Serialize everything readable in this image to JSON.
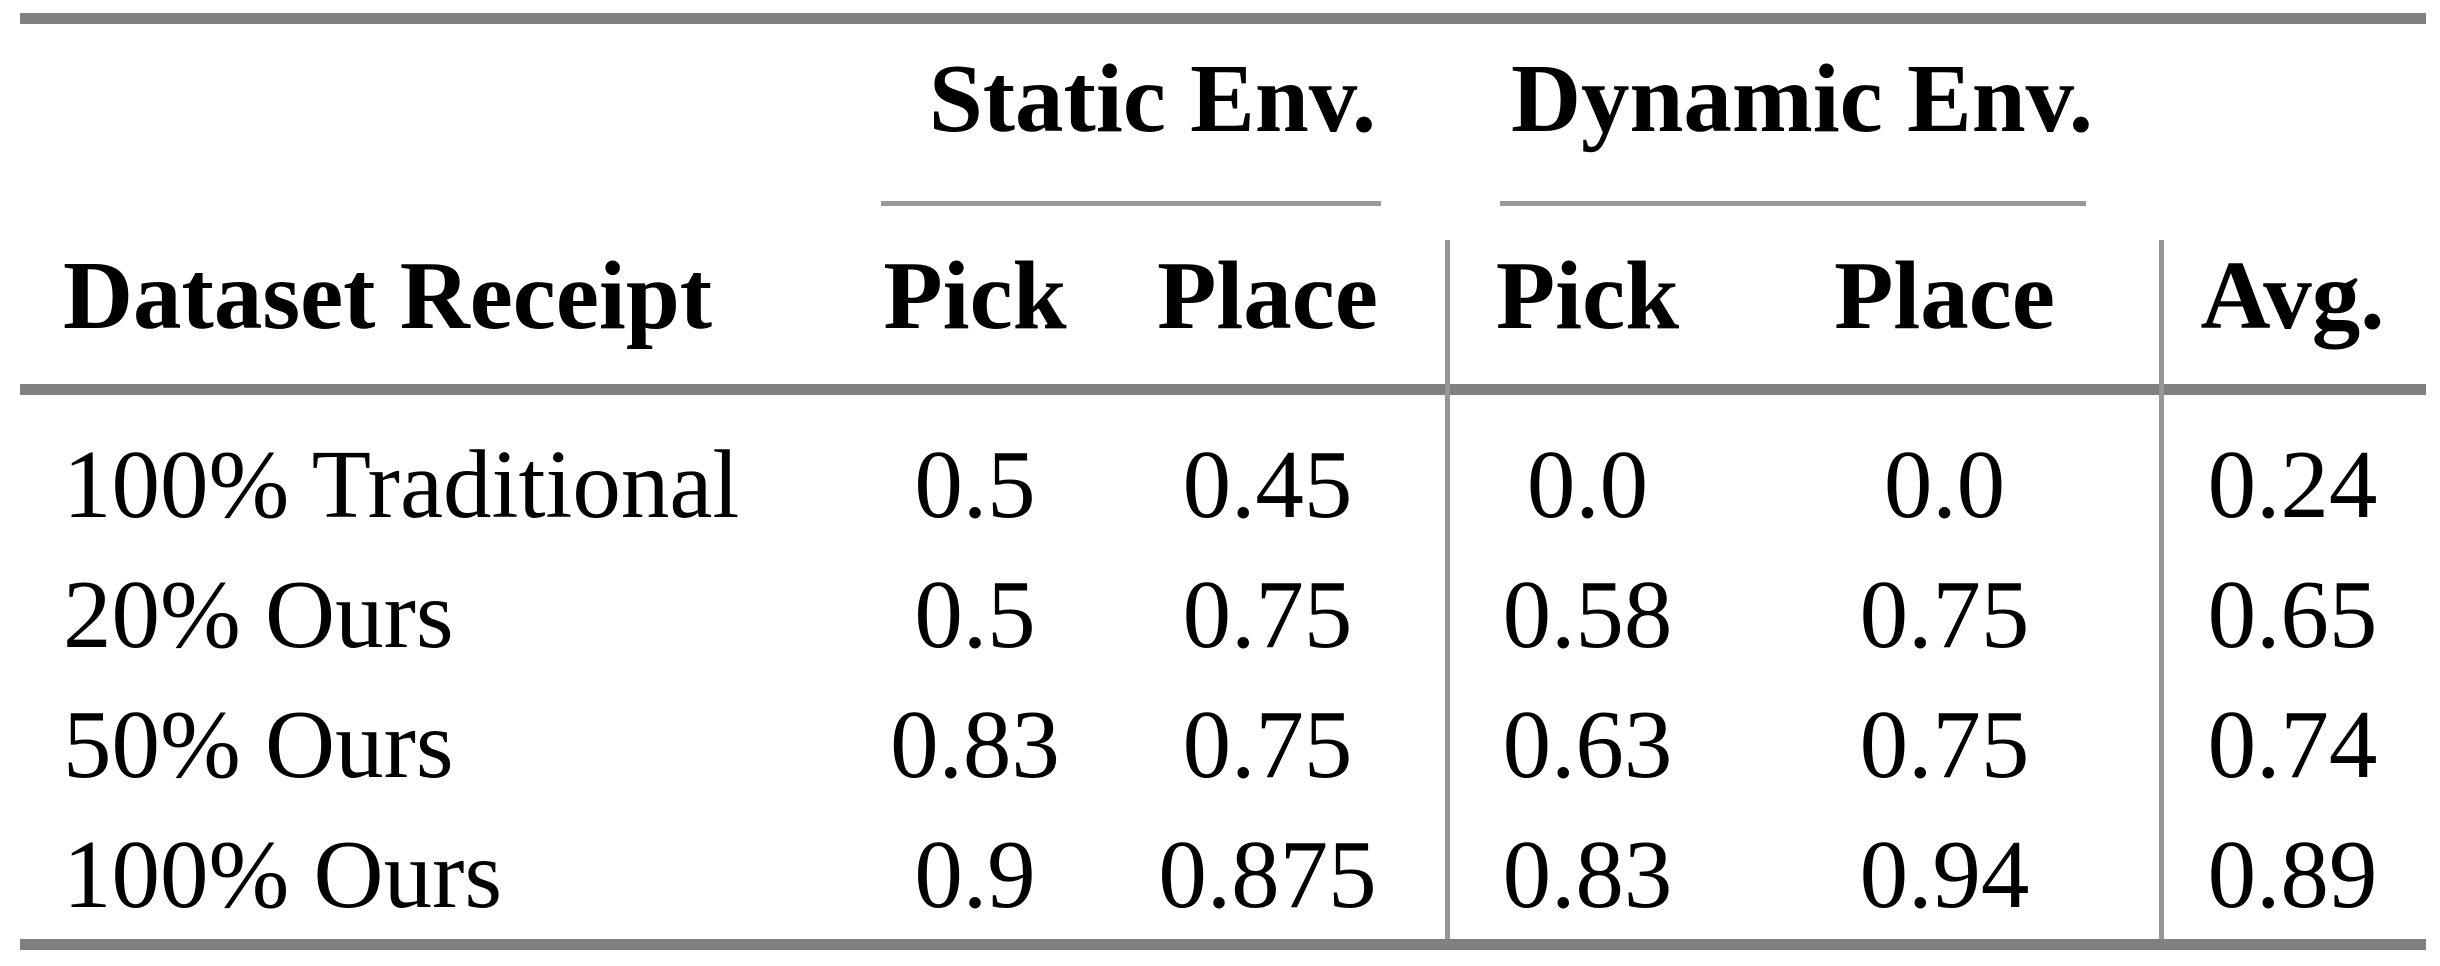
{
  "table": {
    "group_headers": {
      "static": "Static Env.",
      "dynamic": "Dynamic Env."
    },
    "column_headers": {
      "row_label": "Dataset Receipt",
      "static_pick": "Pick",
      "static_place": "Place",
      "dynamic_pick": "Pick",
      "dynamic_place": "Place",
      "avg": "Avg."
    },
    "rows": [
      {
        "label": "100% Traditional",
        "values": [
          "0.5",
          "0.45",
          "0.0",
          "0.0",
          "0.24"
        ]
      },
      {
        "label": "20% Ours",
        "values": [
          "0.5",
          "0.75",
          "0.58",
          "0.75",
          "0.65"
        ]
      },
      {
        "label": "50% Ours",
        "values": [
          "0.83",
          "0.75",
          "0.63",
          "0.75",
          "0.74"
        ]
      },
      {
        "label": "100% Ours",
        "values": [
          "0.9",
          "0.875",
          "0.83",
          "0.94",
          "0.89"
        ]
      }
    ],
    "colors": {
      "thick_rule": "#808080",
      "thin_rule": "#999999",
      "vertical_rule": "#969696",
      "text": "#000000",
      "background": "#ffffff"
    }
  }
}
